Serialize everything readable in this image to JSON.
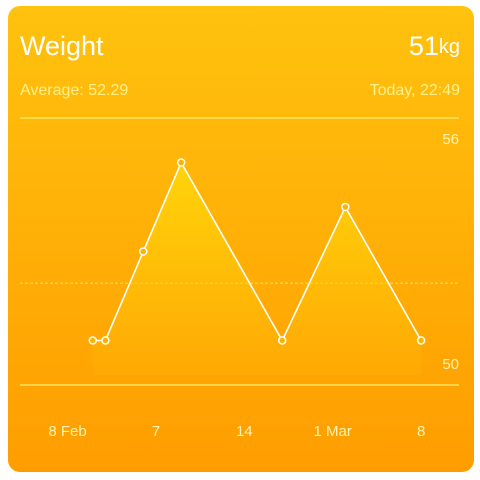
{
  "chart_data": {
    "type": "line",
    "title": "Weight",
    "current_value": "51",
    "current_unit": "kg",
    "subtitle": "Average: 52.29",
    "timestamp": "Today, 22:49",
    "x": [
      2,
      3,
      6,
      9,
      17,
      22,
      28
    ],
    "series": [
      {
        "color": "#ffffff",
        "values": [
          51,
          51,
          53,
          55,
          51,
          54,
          51
        ]
      }
    ],
    "reference_line": 52.29,
    "xlim": [
      -4,
      31
    ],
    "xticks": [
      {
        "value": 0,
        "label": "8 Feb"
      },
      7,
      14,
      {
        "value": 21,
        "label": "1 Mar"
      },
      {
        "value": 28,
        "label": "8"
      }
    ],
    "ylim": [
      50,
      56
    ],
    "yticks": [
      50,
      56
    ],
    "grid": true
  }
}
